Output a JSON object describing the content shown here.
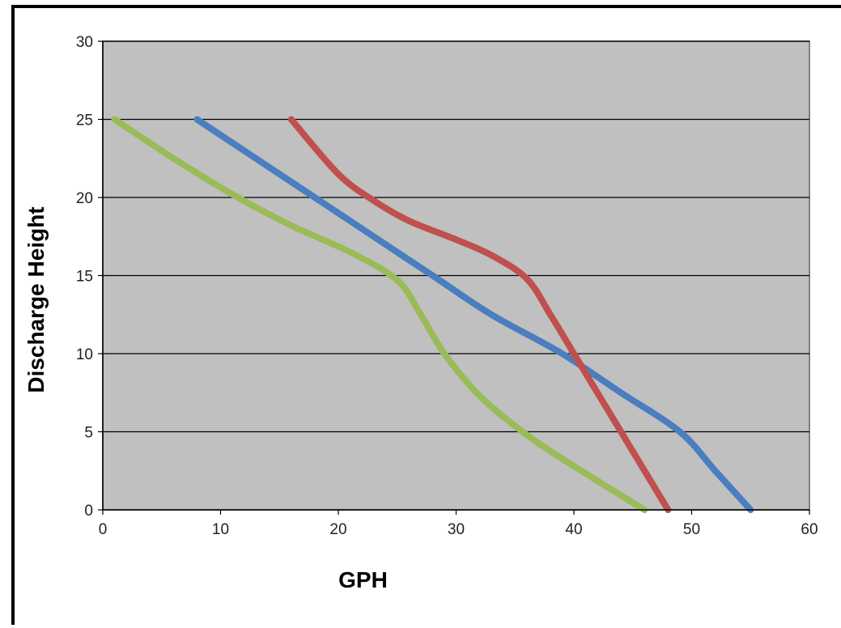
{
  "chart_data": {
    "type": "line",
    "title": "",
    "xlabel": "GPH",
    "ylabel": "Discharge Height",
    "xlim": [
      0,
      60
    ],
    "ylim": [
      0,
      30
    ],
    "x_ticks": [
      0,
      10,
      20,
      30,
      40,
      50,
      60
    ],
    "y_ticks": [
      0,
      5,
      10,
      15,
      20,
      25,
      30
    ],
    "grid": "horizontal",
    "legend": "none",
    "plot_background": "#c0c0c0",
    "series": [
      {
        "color": "#4a7ebf",
        "points": [
          [
            8,
            25
          ],
          [
            18,
            20
          ],
          [
            28,
            15
          ],
          [
            33,
            12.5
          ],
          [
            39,
            10
          ],
          [
            44,
            7.5
          ],
          [
            49,
            5
          ],
          [
            52,
            2.5
          ],
          [
            55,
            0
          ]
        ]
      },
      {
        "color": "#c0504d",
        "points": [
          [
            16,
            25
          ],
          [
            20,
            21.5
          ],
          [
            23,
            19.8
          ],
          [
            26,
            18.5
          ],
          [
            30,
            17.3
          ],
          [
            33,
            16.3
          ],
          [
            36,
            14.8
          ],
          [
            38,
            12.5
          ],
          [
            40,
            10
          ],
          [
            42,
            7.5
          ],
          [
            44,
            5
          ],
          [
            46,
            2.5
          ],
          [
            48,
            0
          ]
        ]
      },
      {
        "color": "#9bbb59",
        "points": [
          [
            1,
            25
          ],
          [
            6,
            22.5
          ],
          [
            11,
            20.2
          ],
          [
            16,
            18.2
          ],
          [
            21,
            16.5
          ],
          [
            25,
            14.7
          ],
          [
            27,
            12.5
          ],
          [
            29,
            10
          ],
          [
            32,
            7.3
          ],
          [
            36,
            4.8
          ],
          [
            40,
            2.8
          ],
          [
            46,
            0
          ]
        ]
      }
    ]
  }
}
